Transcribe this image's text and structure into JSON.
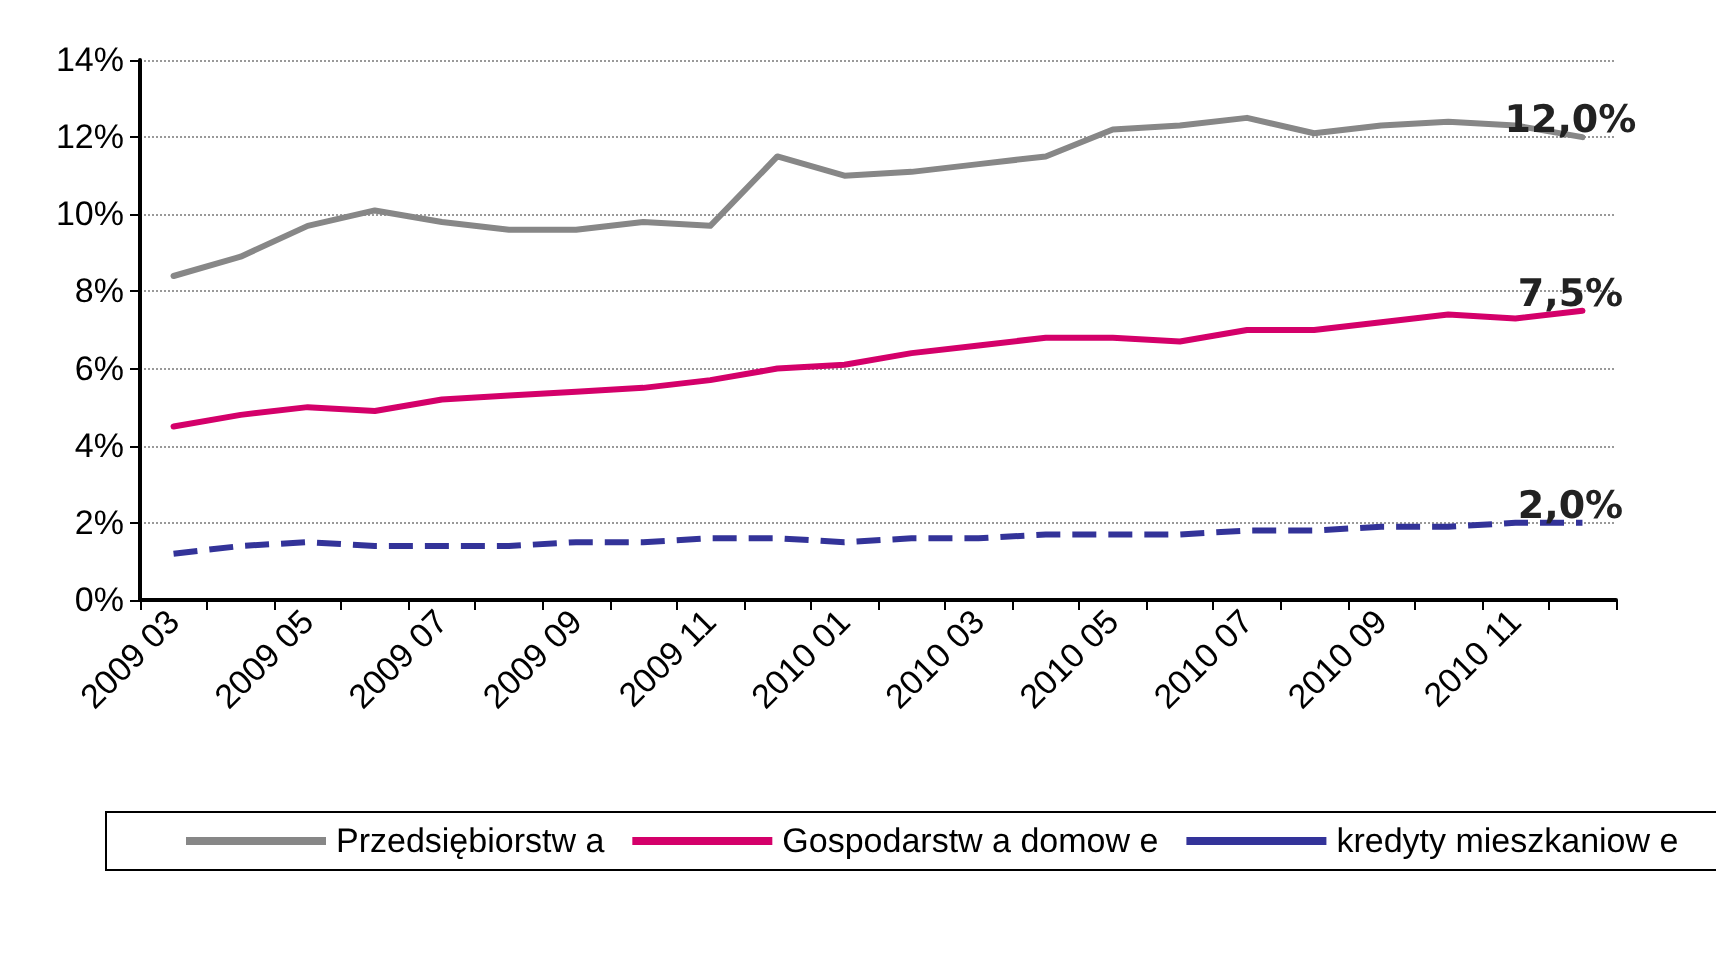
{
  "chart_data": {
    "type": "line",
    "categories": [
      "2009 03",
      null,
      "2009 05",
      null,
      "2009 07",
      null,
      "2009 09",
      null,
      "2009 11",
      null,
      "2010 01",
      null,
      "2010 03",
      null,
      "2010 05",
      null,
      "2010 07",
      null,
      "2010 09",
      null,
      "2010 11",
      null
    ],
    "series": [
      {
        "name": "Przedsiębiorstw a",
        "color": "#878787",
        "line_style": "solid",
        "values": [
          8.4,
          8.9,
          9.7,
          10.1,
          9.8,
          9.6,
          9.6,
          9.8,
          9.7,
          11.5,
          11.0,
          11.1,
          11.3,
          11.5,
          12.2,
          12.3,
          12.5,
          12.1,
          12.3,
          12.4,
          12.3,
          12.0
        ],
        "value_labels": [
          null,
          null,
          null,
          null,
          null,
          null,
          null,
          null,
          null,
          null,
          null,
          null,
          null,
          null,
          null,
          null,
          null,
          null,
          null,
          null,
          null,
          "12,0%"
        ]
      },
      {
        "name": "Gospodarstw a domow e",
        "color": "#d4006a",
        "line_style": "solid",
        "values": [
          4.5,
          4.8,
          5.0,
          4.9,
          5.2,
          5.3,
          5.4,
          5.5,
          5.7,
          6.0,
          6.1,
          6.4,
          6.6,
          6.8,
          6.8,
          6.7,
          7.0,
          7.0,
          7.2,
          7.4,
          7.3,
          7.5
        ],
        "value_labels": [
          null,
          null,
          null,
          null,
          null,
          null,
          null,
          null,
          null,
          null,
          null,
          null,
          null,
          null,
          null,
          null,
          null,
          null,
          null,
          null,
          null,
          "7,5%"
        ]
      },
      {
        "name": "kredyty mieszkaniow e",
        "color": "#333399",
        "line_style": "dashed",
        "values": [
          1.2,
          1.4,
          1.5,
          1.4,
          1.4,
          1.4,
          1.5,
          1.5,
          1.6,
          1.6,
          1.5,
          1.6,
          1.6,
          1.7,
          1.7,
          1.7,
          1.8,
          1.8,
          1.9,
          1.9,
          2.0,
          2.0
        ],
        "value_labels": [
          null,
          null,
          null,
          null,
          null,
          null,
          null,
          null,
          null,
          null,
          null,
          null,
          null,
          null,
          null,
          null,
          null,
          null,
          null,
          null,
          null,
          "2,0%"
        ]
      }
    ],
    "ylim": [
      0,
      14
    ],
    "yticks": [
      {
        "value": 0,
        "label": "0%"
      },
      {
        "value": 2,
        "label": "2%"
      },
      {
        "value": 4,
        "label": "4%"
      },
      {
        "value": 6,
        "label": "6%"
      },
      {
        "value": 8,
        "label": "8%"
      },
      {
        "value": 10,
        "label": "10%"
      },
      {
        "value": 12,
        "label": "12%"
      },
      {
        "value": 14,
        "label": "14%"
      }
    ],
    "grid": "y",
    "legend": "bottom",
    "marker": "none"
  }
}
